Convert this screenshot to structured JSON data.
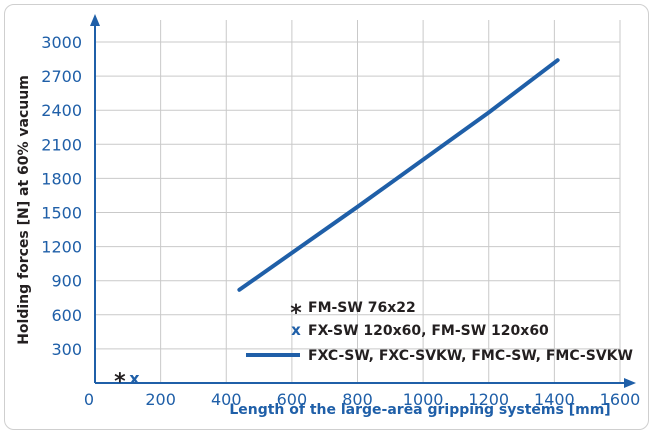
{
  "chart_data": {
    "type": "line",
    "title": "",
    "xlabel": "Length of the large-area gripping systems [mm]",
    "ylabel": "Holding forces [N] at 60% vacuum",
    "xlim": [
      0,
      1600
    ],
    "ylim": [
      0,
      3000
    ],
    "x_ticks": [
      "0",
      "200",
      "400",
      "600",
      "800",
      "1000",
      "1200",
      "1400",
      "1600"
    ],
    "y_ticks": [
      "300",
      "600",
      "900",
      "1200",
      "1500",
      "1800",
      "2100",
      "2400",
      "2700",
      "3000"
    ],
    "grid": true,
    "legend_position": "bottom-right",
    "series": [
      {
        "name": "FM-SW 76x22",
        "marker": "*",
        "color": "#231f20",
        "points": [
          {
            "x": 76,
            "y": 22
          }
        ]
      },
      {
        "name": "FX-SW 120x60, FM-SW 120x60",
        "marker": "x",
        "color": "#1f5fa8",
        "points": [
          {
            "x": 120,
            "y": 60
          }
        ]
      },
      {
        "name": "FXC-SW, FXC-SVKW, FMC-SW, FMC-SVKW",
        "marker": "line",
        "color": "#1f5fa8",
        "points": [
          {
            "x": 440,
            "y": 820
          },
          {
            "x": 800,
            "y": 1550
          },
          {
            "x": 1200,
            "y": 2380
          },
          {
            "x": 1410,
            "y": 2840
          }
        ]
      }
    ]
  }
}
